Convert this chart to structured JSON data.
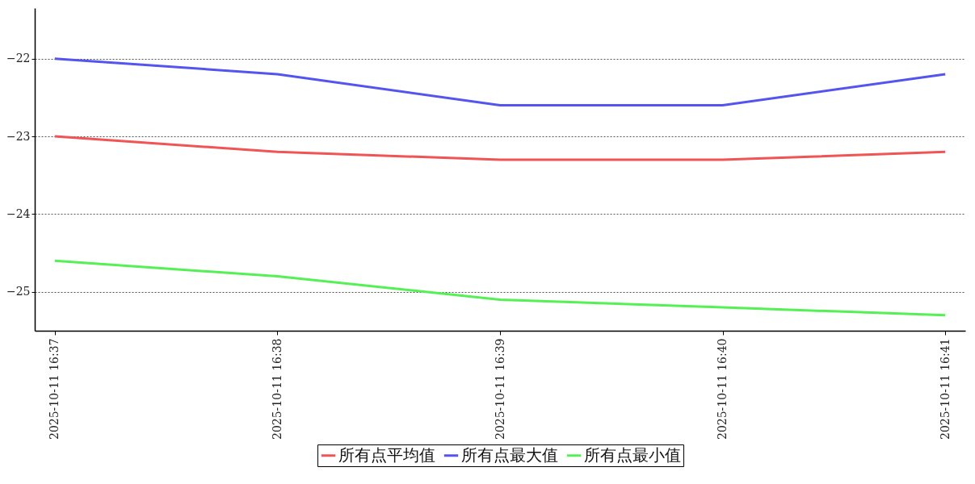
{
  "chart_data": {
    "type": "line",
    "categories": [
      "2025-10-11 16:37",
      "2025-10-11 16:38",
      "2025-10-11 16:39",
      "2025-10-11 16:40",
      "2025-10-11 16:41"
    ],
    "series": [
      {
        "name": "所有点平均值",
        "color": "#f05454",
        "values": [
          -23.0,
          -23.2,
          -23.3,
          -23.3,
          -23.2
        ]
      },
      {
        "name": "所有点最大值",
        "color": "#5454f0",
        "values": [
          -22.0,
          -22.2,
          -22.6,
          -22.6,
          -22.2
        ]
      },
      {
        "name": "所有点最小值",
        "color": "#54f054",
        "values": [
          -24.6,
          -24.8,
          -25.1,
          -25.2,
          -25.3
        ]
      }
    ],
    "ylim": [
      -25.5,
      -21.35
    ],
    "yticks": [
      -25,
      -24,
      -23,
      -22
    ],
    "grid": "y",
    "legend": "bottom"
  }
}
